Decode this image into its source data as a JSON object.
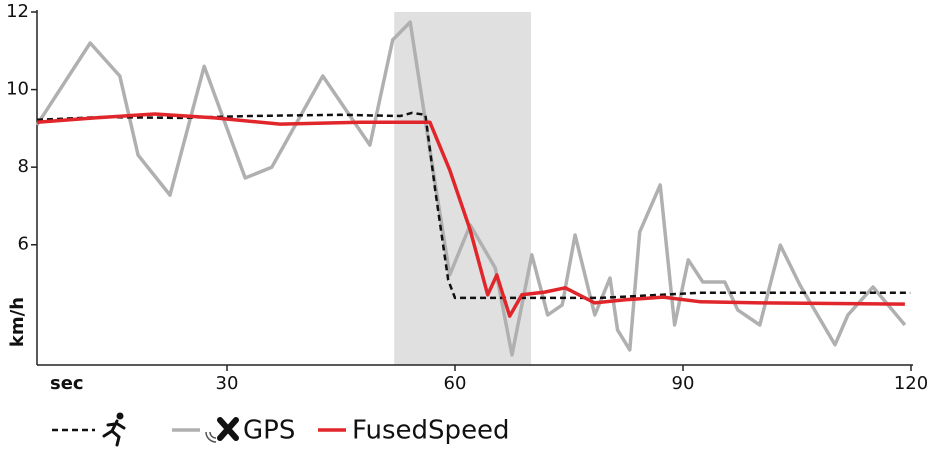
{
  "chart_data": {
    "type": "line",
    "x_label": "sec",
    "y_label": "km/h",
    "xlim": [
      5,
      120
    ],
    "ylim": [
      2.9,
      12
    ],
    "xticks": [
      30,
      60,
      90,
      120
    ],
    "yticks": [
      6,
      8,
      10,
      12
    ],
    "shaded_region": [
      52,
      70
    ],
    "shaded_color": "#e0e0e0",
    "series": [
      {
        "color": "#111111",
        "dashed": true,
        "x": [
          5,
          13.3,
          23.8,
          33.0,
          44.9,
          52.8,
          54.3,
          56.1,
          57.4,
          59.1,
          60.0,
          79.1,
          92.2,
          102.8,
          119.9
        ],
        "values": [
          9.22,
          9.29,
          9.27,
          9.32,
          9.35,
          9.32,
          9.4,
          9.35,
          7.41,
          5.09,
          4.63,
          4.63,
          4.76,
          4.76,
          4.76
        ]
      },
      {
        "name": "GPS",
        "color": "#b0b0b0",
        "x": [
          5,
          12.0,
          15.9,
          18.3,
          22.5,
          27.0,
          32.4,
          35.9,
          42.6,
          48.8,
          51.8,
          54.1,
          56.7,
          59.3,
          62.0,
          65.3,
          67.5,
          70.1,
          72.2,
          74.1,
          75.8,
          78.4,
          80.4,
          81.4,
          83.0,
          84.3,
          87.0,
          88.9,
          90.7,
          92.6,
          95.5,
          97.2,
          100.1,
          102.8,
          105.4,
          110.0,
          111.7,
          115.0,
          119.2
        ],
        "values": [
          9.09,
          11.2,
          10.35,
          8.31,
          7.28,
          10.6,
          7.72,
          8.0,
          10.35,
          8.57,
          11.28,
          11.74,
          8.44,
          5.22,
          6.51,
          5.4,
          3.16,
          5.74,
          4.19,
          4.45,
          6.25,
          4.19,
          5.14,
          3.8,
          3.29,
          6.33,
          7.54,
          3.93,
          5.61,
          5.04,
          5.04,
          4.32,
          3.93,
          5.99,
          4.96,
          3.42,
          4.19,
          4.91,
          3.93
        ]
      },
      {
        "name": "FusedSpeed",
        "color": "#e0262b",
        "x": [
          5,
          12.6,
          20.5,
          28.4,
          37.0,
          47.5,
          56.7,
          59.3,
          62.0,
          64.3,
          65.5,
          67.2,
          68.8,
          71.8,
          74.5,
          78.4,
          82.4,
          87.4,
          92.3,
          100.1,
          119.2
        ],
        "values": [
          9.16,
          9.27,
          9.37,
          9.27,
          9.11,
          9.16,
          9.16,
          7.93,
          6.38,
          4.71,
          5.22,
          4.16,
          4.71,
          4.78,
          4.89,
          4.5,
          4.58,
          4.65,
          4.53,
          4.5,
          4.47
        ]
      }
    ]
  }
}
